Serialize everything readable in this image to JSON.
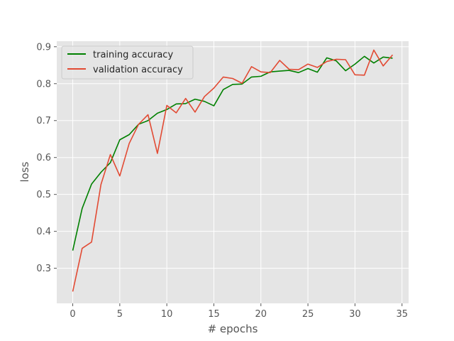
{
  "chart_data": {
    "type": "line",
    "title": "",
    "xlabel": "# epochs",
    "ylabel": "loss",
    "xlim": [
      -1.7,
      35.7
    ],
    "ylim": [
      0.205,
      0.915
    ],
    "xticks": [
      0,
      5,
      10,
      15,
      20,
      25,
      30,
      35
    ],
    "yticks": [
      0.3,
      0.4,
      0.5,
      0.6,
      0.7,
      0.8,
      0.9
    ],
    "xtick_labels": [
      "0",
      "5",
      "10",
      "15",
      "20",
      "25",
      "30",
      "35"
    ],
    "ytick_labels": [
      "0.3",
      "0.4",
      "0.5",
      "0.6",
      "0.7",
      "0.8",
      "0.9"
    ],
    "grid": true,
    "legend_position": "top-left",
    "background": "#e5e5e5",
    "x": [
      0,
      1,
      2,
      3,
      4,
      5,
      6,
      7,
      8,
      9,
      10,
      11,
      12,
      13,
      14,
      15,
      16,
      17,
      18,
      19,
      20,
      21,
      22,
      23,
      24,
      25,
      26,
      27,
      28,
      29,
      30,
      31,
      32,
      33,
      34
    ],
    "series": [
      {
        "name": "training accuracy",
        "color": "#008000",
        "values": [
          0.348,
          0.462,
          0.528,
          0.56,
          0.586,
          0.648,
          0.662,
          0.69,
          0.7,
          0.72,
          0.73,
          0.745,
          0.746,
          0.758,
          0.752,
          0.74,
          0.784,
          0.798,
          0.799,
          0.818,
          0.82,
          0.832,
          0.834,
          0.836,
          0.83,
          0.841,
          0.831,
          0.87,
          0.862,
          0.835,
          0.853,
          0.874,
          0.856,
          0.872,
          0.869
        ]
      },
      {
        "name": "validation accuracy",
        "color": "#e24a33",
        "values": [
          0.237,
          0.354,
          0.371,
          0.527,
          0.608,
          0.55,
          0.638,
          0.69,
          0.716,
          0.611,
          0.741,
          0.721,
          0.76,
          0.723,
          0.765,
          0.788,
          0.818,
          0.814,
          0.801,
          0.846,
          0.832,
          0.83,
          0.863,
          0.839,
          0.838,
          0.853,
          0.844,
          0.86,
          0.866,
          0.865,
          0.824,
          0.823,
          0.891,
          0.848,
          0.878
        ]
      }
    ]
  }
}
